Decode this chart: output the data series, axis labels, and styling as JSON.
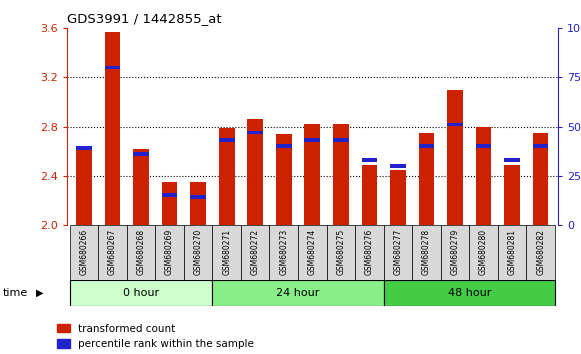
{
  "title": "GDS3991 / 1442855_at",
  "samples": [
    "GSM680266",
    "GSM680267",
    "GSM680268",
    "GSM680269",
    "GSM680270",
    "GSM680271",
    "GSM680272",
    "GSM680273",
    "GSM680274",
    "GSM680275",
    "GSM680276",
    "GSM680277",
    "GSM680278",
    "GSM680279",
    "GSM680280",
    "GSM680281",
    "GSM680282"
  ],
  "transformed_count": [
    2.62,
    3.57,
    2.62,
    2.35,
    2.35,
    2.79,
    2.86,
    2.74,
    2.82,
    2.82,
    2.49,
    2.45,
    2.75,
    3.1,
    2.8,
    2.49,
    2.75
  ],
  "percentile_rank_pct": [
    39,
    80,
    36,
    15,
    14,
    43,
    47,
    40,
    43,
    43,
    33,
    30,
    40,
    51,
    40,
    33,
    40
  ],
  "ylim_left": [
    2.0,
    3.6
  ],
  "ylim_right": [
    0,
    100
  ],
  "yticks_left": [
    2.0,
    2.4,
    2.8,
    3.2,
    3.6
  ],
  "yticks_right": [
    0,
    25,
    50,
    75,
    100
  ],
  "bar_color": "#cc2200",
  "blue_color": "#2222cc",
  "bar_width": 0.55,
  "bar_bottom": 2.0,
  "background_color": "#ffffff",
  "grid_color": "#000000",
  "legend_red_label": "transformed count",
  "legend_blue_label": "percentile rank within the sample",
  "left_axis_color": "#cc2200",
  "right_axis_color": "#2222cc",
  "group_ranges": [
    [
      0,
      5,
      "0 hour"
    ],
    [
      5,
      11,
      "24 hour"
    ],
    [
      11,
      17,
      "48 hour"
    ]
  ],
  "group_colors": [
    "#ccffcc",
    "#88ee88",
    "#44cc44"
  ]
}
